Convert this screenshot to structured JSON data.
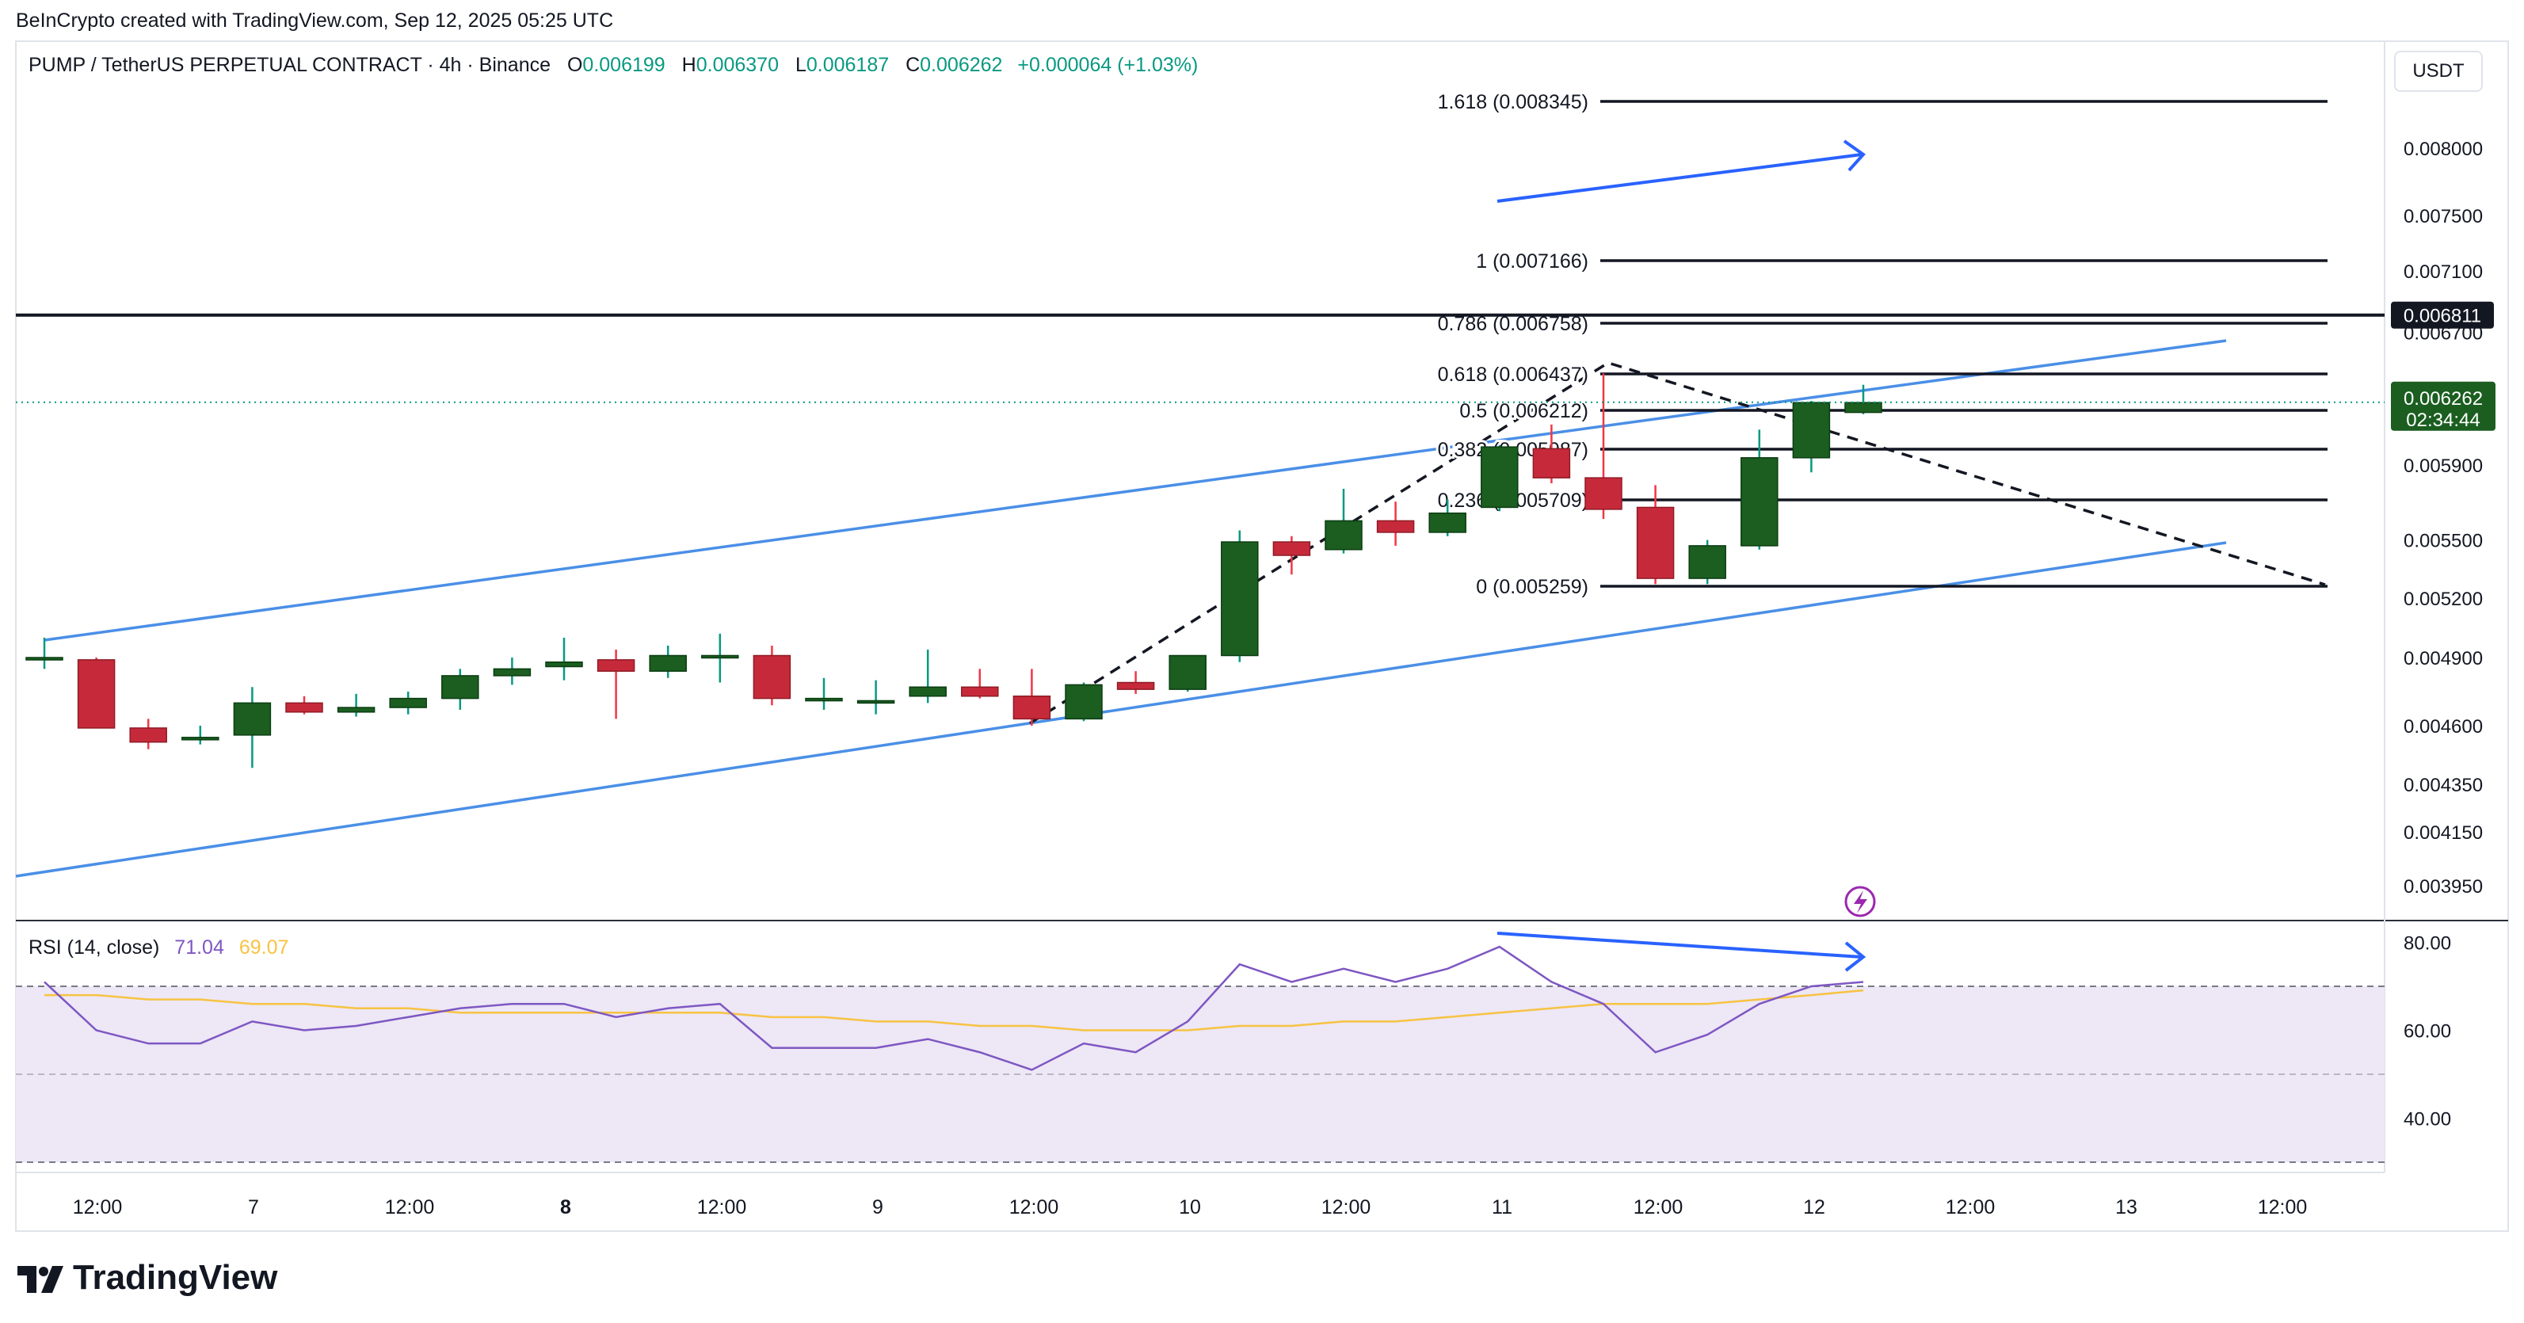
{
  "header": {
    "credit": "BeInCrypto created with TradingView.com, Sep 12, 2025 05:25 UTC",
    "symbol": "PUMP / TetherUS PERPETUAL CONTRACT · 4h · Binance",
    "o_label": "O",
    "o_value": "0.006199",
    "h_label": "H",
    "h_value": "0.006370",
    "l_label": "L",
    "l_value": "0.006187",
    "c_label": "C",
    "c_value": "0.006262",
    "change": "+0.000064 (+1.03%)"
  },
  "currency_button": "USDT",
  "logo_text": "TradingView",
  "rsi_legend": {
    "label": "RSI (14, close)",
    "rsi_value": "71.04",
    "ma_value": "69.07"
  },
  "colors": {
    "up": "#1b5e20",
    "down": "#c62a3a",
    "channel": "#4a8fe7",
    "rsi": "#7e57c2",
    "rsi_ma": "#f7c342",
    "band": "#ede7f6"
  },
  "chart_data": {
    "type": "candlestick",
    "price_axis_ticks": [
      "0.008000",
      "0.007500",
      "0.007100",
      "0.006700",
      "0.005900",
      "0.005500",
      "0.005200",
      "0.004900",
      "0.004600",
      "0.004350",
      "0.004150",
      "0.003950"
    ],
    "time_axis_ticks": [
      {
        "label": "12:00",
        "bold": false
      },
      {
        "label": "7",
        "bold": false
      },
      {
        "label": "12:00",
        "bold": false
      },
      {
        "label": "8",
        "bold": true
      },
      {
        "label": "12:00",
        "bold": false
      },
      {
        "label": "9",
        "bold": false
      },
      {
        "label": "12:00",
        "bold": false
      },
      {
        "label": "10",
        "bold": false
      },
      {
        "label": "12:00",
        "bold": false
      },
      {
        "label": "11",
        "bold": false
      },
      {
        "label": "12:00",
        "bold": false
      },
      {
        "label": "12",
        "bold": false
      },
      {
        "label": "12:00",
        "bold": false
      },
      {
        "label": "13",
        "bold": false
      },
      {
        "label": "12:00",
        "bold": false
      }
    ],
    "candles": [
      {
        "o": 0.0049,
        "h": 0.005,
        "l": 0.00485,
        "c": 0.0049
      },
      {
        "o": 0.00489,
        "h": 0.0049,
        "l": 0.00459,
        "c": 0.00459
      },
      {
        "o": 0.00459,
        "h": 0.00463,
        "l": 0.0045,
        "c": 0.00453
      },
      {
        "o": 0.00454,
        "h": 0.0046,
        "l": 0.00452,
        "c": 0.00455
      },
      {
        "o": 0.00456,
        "h": 0.00477,
        "l": 0.00442,
        "c": 0.0047
      },
      {
        "o": 0.0047,
        "h": 0.00473,
        "l": 0.00465,
        "c": 0.00466
      },
      {
        "o": 0.00466,
        "h": 0.00474,
        "l": 0.00464,
        "c": 0.00468
      },
      {
        "o": 0.00468,
        "h": 0.00475,
        "l": 0.00465,
        "c": 0.00472
      },
      {
        "o": 0.00472,
        "h": 0.00485,
        "l": 0.00467,
        "c": 0.00482
      },
      {
        "o": 0.00482,
        "h": 0.0049,
        "l": 0.00478,
        "c": 0.00485
      },
      {
        "o": 0.00486,
        "h": 0.005,
        "l": 0.0048,
        "c": 0.00488
      },
      {
        "o": 0.00489,
        "h": 0.00494,
        "l": 0.00463,
        "c": 0.00484
      },
      {
        "o": 0.00484,
        "h": 0.00496,
        "l": 0.00481,
        "c": 0.00491
      },
      {
        "o": 0.00491,
        "h": 0.00502,
        "l": 0.00479,
        "c": 0.00491
      },
      {
        "o": 0.00491,
        "h": 0.00496,
        "l": 0.00469,
        "c": 0.00472
      },
      {
        "o": 0.00472,
        "h": 0.00481,
        "l": 0.00467,
        "c": 0.00472
      },
      {
        "o": 0.00471,
        "h": 0.0048,
        "l": 0.00465,
        "c": 0.00471
      },
      {
        "o": 0.00473,
        "h": 0.00494,
        "l": 0.0047,
        "c": 0.00477
      },
      {
        "o": 0.00477,
        "h": 0.00485,
        "l": 0.00472,
        "c": 0.00473
      },
      {
        "o": 0.00473,
        "h": 0.00485,
        "l": 0.0046,
        "c": 0.00463
      },
      {
        "o": 0.00463,
        "h": 0.00479,
        "l": 0.00462,
        "c": 0.00478
      },
      {
        "o": 0.00479,
        "h": 0.00484,
        "l": 0.00474,
        "c": 0.00476
      },
      {
        "o": 0.00476,
        "h": 0.00491,
        "l": 0.00475,
        "c": 0.00491
      },
      {
        "o": 0.00491,
        "h": 0.00555,
        "l": 0.00488,
        "c": 0.00549
      },
      {
        "o": 0.00549,
        "h": 0.00552,
        "l": 0.00532,
        "c": 0.00542
      },
      {
        "o": 0.00545,
        "h": 0.00577,
        "l": 0.00543,
        "c": 0.0056
      },
      {
        "o": 0.0056,
        "h": 0.0057,
        "l": 0.00547,
        "c": 0.00554
      },
      {
        "o": 0.00554,
        "h": 0.00571,
        "l": 0.00552,
        "c": 0.00564
      },
      {
        "o": 0.00567,
        "h": 0.00601,
        "l": 0.00565,
        "c": 0.006
      },
      {
        "o": 0.00599,
        "h": 0.00613,
        "l": 0.0058,
        "c": 0.00583
      },
      {
        "o": 0.00583,
        "h": 0.00644,
        "l": 0.00561,
        "c": 0.00566
      },
      {
        "o": 0.00567,
        "h": 0.00579,
        "l": 0.00527,
        "c": 0.0053
      },
      {
        "o": 0.0053,
        "h": 0.0055,
        "l": 0.00527,
        "c": 0.00547
      },
      {
        "o": 0.00547,
        "h": 0.0061,
        "l": 0.00545,
        "c": 0.00594
      },
      {
        "o": 0.00594,
        "h": 0.00627,
        "l": 0.00586,
        "c": 0.00626
      },
      {
        "o": 0.0062,
        "h": 0.00637,
        "l": 0.00619,
        "c": 0.00626
      }
    ],
    "fib_levels": [
      {
        "label": "1.618 (0.008345)",
        "value": 0.008345
      },
      {
        "label": "1 (0.007166)",
        "value": 0.007166
      },
      {
        "label": "0.786 (0.006758)",
        "value": 0.006758
      },
      {
        "label": "0.618 (0.006437)",
        "value": 0.006437
      },
      {
        "label": "0.5 (0.006212)",
        "value": 0.006212
      },
      {
        "label": "0.382 (0.005987)",
        "value": 0.005987
      },
      {
        "label": "0.236 (0.005709)",
        "value": 0.005709
      },
      {
        "label": "0 (0.005259)",
        "value": 0.005259
      }
    ],
    "resistance_line": {
      "label": "0.006811",
      "value": 0.006811
    },
    "last_price": {
      "value": "0.006262",
      "countdown": "02:34:44"
    },
    "rsi_axis_ticks": [
      "80.00",
      "60.00",
      "40.00"
    ],
    "rsi_levels": {
      "upper": 70,
      "middle": 50,
      "lower": 30
    },
    "rsi": [
      71,
      60,
      57,
      57,
      62,
      60,
      61,
      63,
      65,
      66,
      66,
      63,
      65,
      66,
      56,
      56,
      56,
      58,
      55,
      51,
      57,
      55,
      62,
      75,
      71,
      74,
      71,
      74,
      79,
      71,
      66,
      55,
      59,
      66,
      70,
      71
    ],
    "rsi_ma": [
      68,
      68,
      67,
      67,
      66,
      66,
      65,
      65,
      64,
      64,
      64,
      64,
      64,
      64,
      63,
      63,
      62,
      62,
      61,
      61,
      60,
      60,
      60,
      61,
      61,
      62,
      62,
      63,
      64,
      65,
      66,
      66,
      66,
      67,
      68,
      69.07
    ]
  }
}
